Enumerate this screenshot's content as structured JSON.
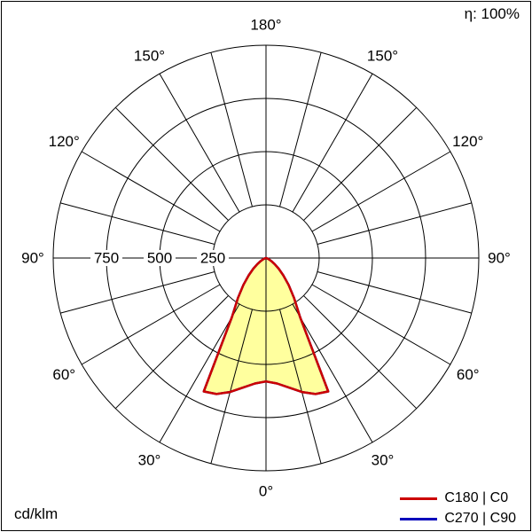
{
  "header": {
    "efficiency_label": "η: 100%"
  },
  "footer": {
    "units_label": "cd/klm"
  },
  "legend": {
    "entries": [
      {
        "label": "C180 | C0",
        "color": "#cc0000"
      },
      {
        "label": "C270 | C90",
        "color": "#0000bb"
      }
    ]
  },
  "chart_data": {
    "type": "polar",
    "subtype": "luminous-intensity-distribution",
    "units": "cd/klm",
    "efficiency_percent": 100,
    "grid": {
      "angle_step_deg": 15,
      "angle_label_step_deg": 30,
      "angle_labels": [
        "0°",
        "30°",
        "60°",
        "90°",
        "120°",
        "150°",
        "180°"
      ],
      "rings": [
        250,
        500,
        750,
        1000
      ],
      "ring_labels": [
        "250",
        "500",
        "750"
      ],
      "max_value": 1000
    },
    "gamma_deg": [
      0,
      5,
      10,
      15,
      20,
      25,
      30,
      35,
      40,
      45,
      50,
      55,
      60,
      65,
      70,
      75,
      80,
      85,
      90
    ],
    "symmetric": true,
    "series": [
      {
        "name": "C180 | C0",
        "color": "#cc0000",
        "values": [
          580,
          592,
          618,
          652,
          680,
          692,
          320,
          230,
          165,
          115,
          78,
          50,
          30,
          16,
          8,
          3,
          1,
          0,
          0
        ]
      },
      {
        "name": "C270 | C90",
        "color": "#0000bb",
        "values": [
          580,
          592,
          618,
          652,
          680,
          692,
          320,
          230,
          165,
          115,
          78,
          50,
          30,
          16,
          8,
          3,
          1,
          0,
          0
        ]
      }
    ],
    "fill_color": "#ffff9e",
    "legend_position": "bottom-right"
  }
}
